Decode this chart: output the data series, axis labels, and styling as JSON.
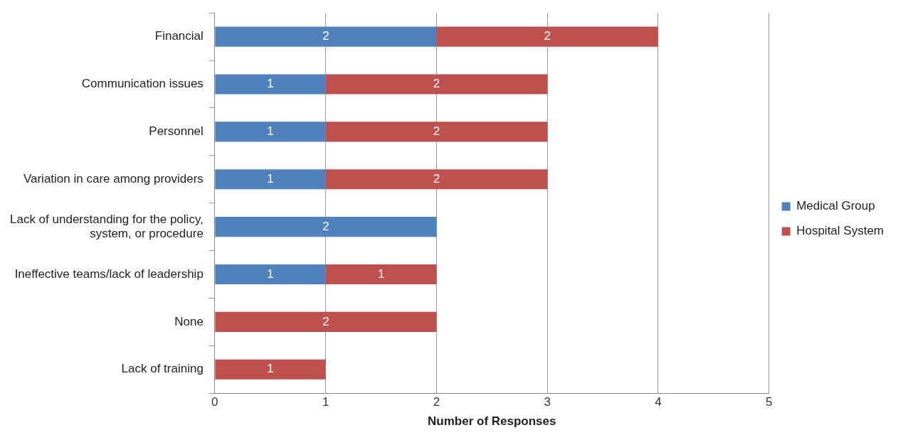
{
  "chart_data": {
    "type": "bar",
    "orientation": "horizontal",
    "stacked": true,
    "xlabel": "Number of Responses",
    "categories": [
      "Financial",
      "Communication issues",
      "Personnel",
      "Variation in care among providers",
      "Lack of understanding for the policy, system, or procedure",
      "Ineffective teams/lack of leadership",
      "None",
      "Lack of training"
    ],
    "series": [
      {
        "name": "Medical Group",
        "color": "#4f81bd",
        "values": [
          2,
          1,
          1,
          1,
          2,
          1,
          null,
          null
        ]
      },
      {
        "name": "Hospital System",
        "color": "#c0504d",
        "values": [
          2,
          2,
          2,
          2,
          null,
          1,
          2,
          1
        ]
      }
    ],
    "xlim": [
      0,
      5
    ],
    "xticks": [
      0,
      1,
      2,
      3,
      4,
      5
    ],
    "grid": "x",
    "legend": "right",
    "data_labels": true
  }
}
